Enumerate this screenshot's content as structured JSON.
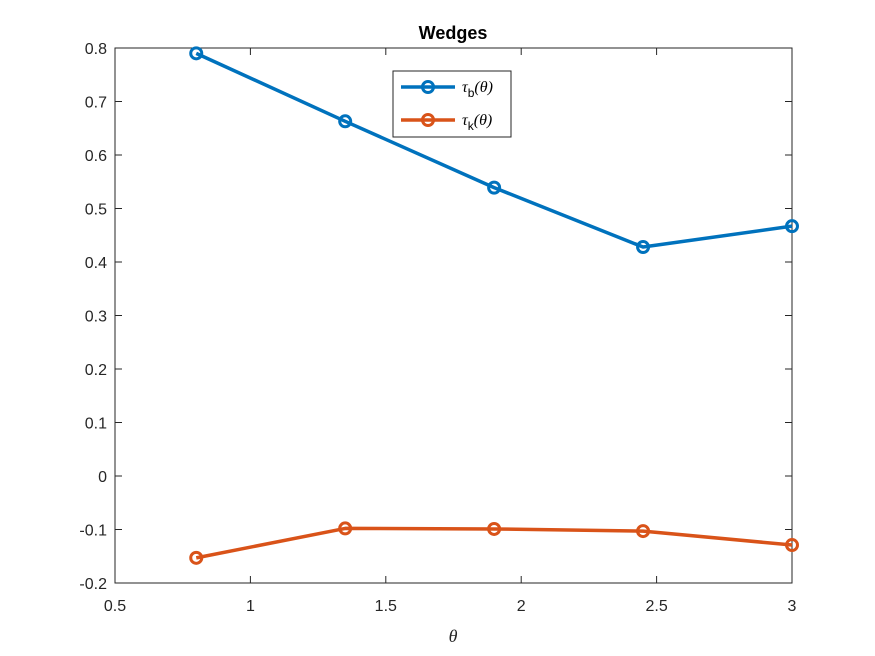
{
  "chart_data": {
    "type": "line",
    "title": "Wedges",
    "xlabel": "θ",
    "ylabel": "",
    "xlim": [
      0.5,
      3
    ],
    "ylim": [
      -0.2,
      0.8
    ],
    "xticks": [
      0.5,
      1,
      1.5,
      2,
      2.5,
      3
    ],
    "xtick_labels": [
      "0.5",
      "1",
      "1.5",
      "2",
      "2.5",
      "3"
    ],
    "yticks": [
      -0.2,
      -0.1,
      0,
      0.1,
      0.2,
      0.3,
      0.4,
      0.5,
      0.6,
      0.7,
      0.8
    ],
    "ytick_labels": [
      "-0.2",
      "-0.1",
      "0",
      "0.1",
      "0.2",
      "0.3",
      "0.4",
      "0.5",
      "0.6",
      "0.7",
      "0.8"
    ],
    "x": [
      0.8,
      1.35,
      1.9,
      2.45,
      3.0
    ],
    "grid": false,
    "legend_position": "top-center",
    "series": [
      {
        "name": "τb(θ)",
        "legend_main": "τ",
        "legend_sub": "b",
        "legend_tail": "(θ)",
        "color": "#0072BD",
        "marker": "circle",
        "values": [
          0.79,
          0.663,
          0.539,
          0.428,
          0.467
        ]
      },
      {
        "name": "τk(θ)",
        "legend_main": "τ",
        "legend_sub": "k",
        "legend_tail": "(θ)",
        "color": "#D95319",
        "marker": "circle",
        "values": [
          -0.153,
          -0.098,
          -0.099,
          -0.103,
          -0.129
        ]
      }
    ]
  }
}
